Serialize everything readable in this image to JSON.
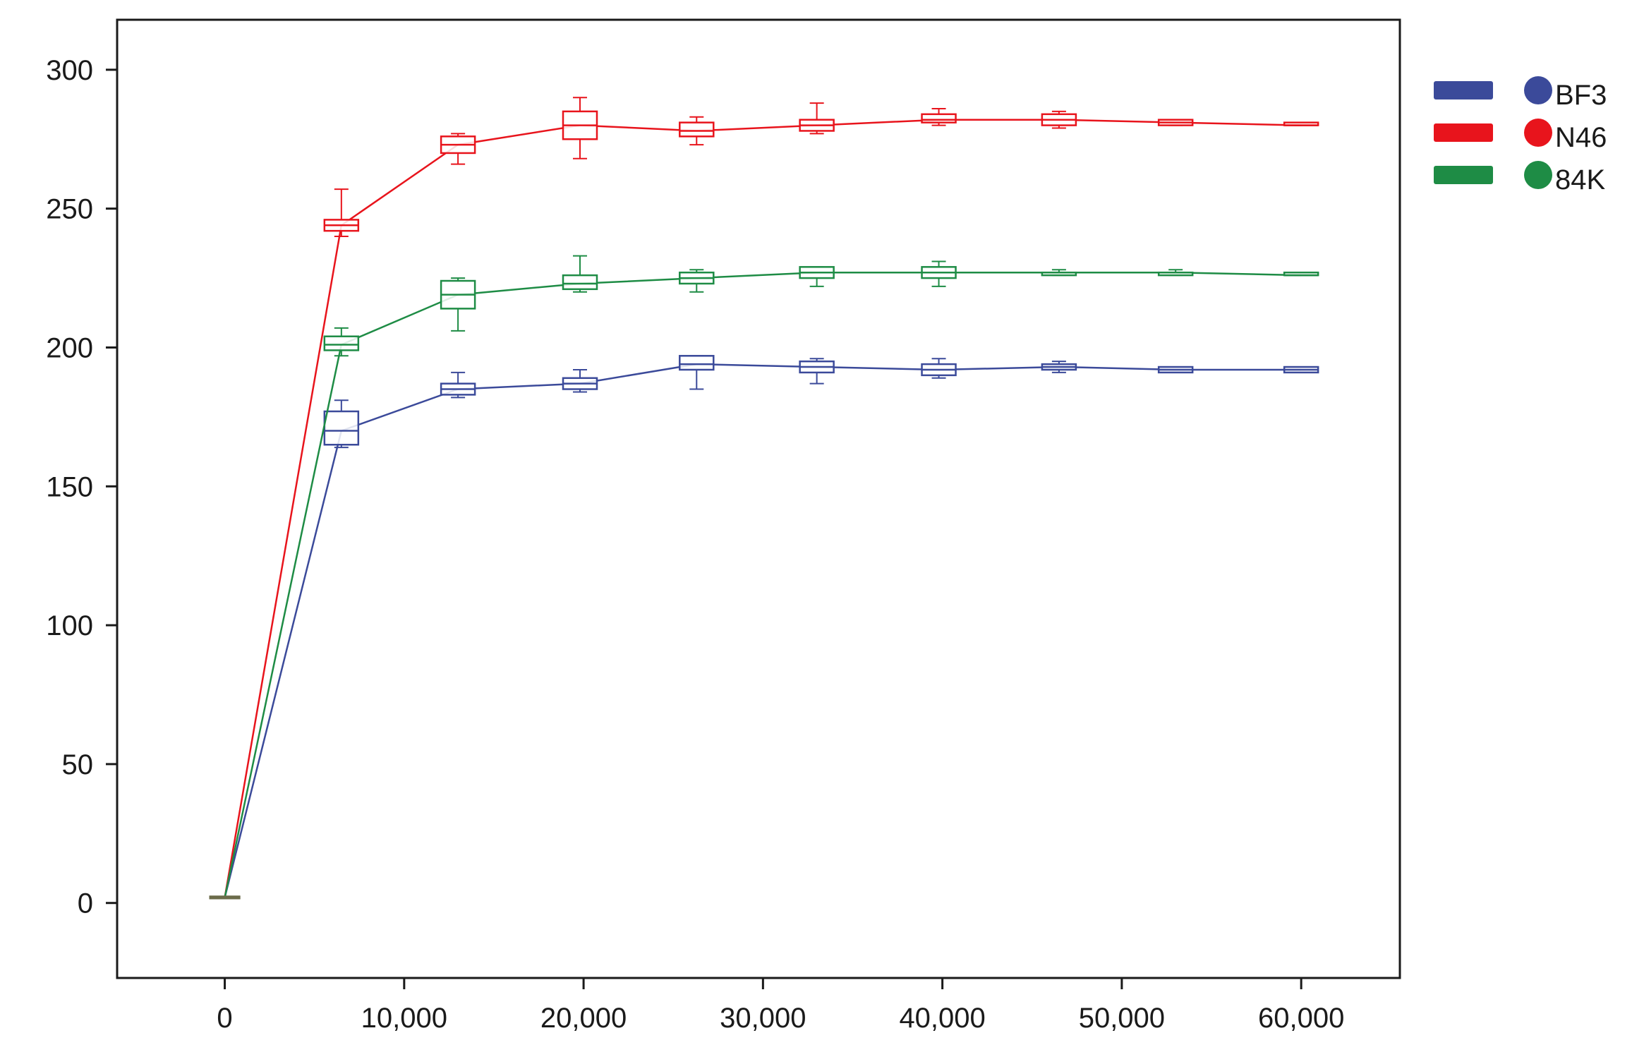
{
  "chart_data": {
    "type": "box-line",
    "x": [
      0,
      6500,
      13000,
      19800,
      26300,
      33000,
      39800,
      46500,
      53000,
      60000
    ],
    "xlim": [
      -6000,
      65500
    ],
    "ylim": [
      -27,
      318
    ],
    "x_ticks": [
      0,
      10000,
      20000,
      30000,
      40000,
      50000,
      60000
    ],
    "x_tick_labels": [
      "0",
      "10,000",
      "20,000",
      "30,000",
      "40,000",
      "50,000",
      "60,000"
    ],
    "y_ticks": [
      0,
      50,
      100,
      150,
      200,
      250,
      300
    ],
    "y_tick_labels": [
      "0",
      "50",
      "100",
      "150",
      "200",
      "250",
      "300"
    ],
    "grid": false,
    "legend_position": "outside-right-top",
    "series": [
      {
        "name": "BF3",
        "color": "#3b4a9a",
        "median": [
          2,
          170,
          185,
          187,
          194,
          193,
          192,
          193,
          192,
          192
        ],
        "q1": [
          2,
          165,
          183,
          185,
          192,
          191,
          190,
          192,
          191,
          191
        ],
        "q3": [
          2,
          177,
          187,
          189,
          197,
          195,
          194,
          194,
          193,
          193
        ],
        "whisker_low": [
          2,
          164,
          182,
          184,
          185,
          187,
          189,
          191,
          191,
          191
        ],
        "whisker_high": [
          2,
          181,
          191,
          192,
          197,
          196,
          196,
          195,
          193,
          193
        ]
      },
      {
        "name": "N46",
        "color": "#e8141c",
        "median": [
          2,
          244,
          273,
          280,
          278,
          280,
          282,
          282,
          281,
          280
        ],
        "q1": [
          2,
          242,
          270,
          275,
          276,
          278,
          281,
          280,
          280,
          280
        ],
        "q3": [
          2,
          246,
          276,
          285,
          281,
          282,
          284,
          284,
          282,
          281
        ],
        "whisker_low": [
          2,
          240,
          266,
          268,
          273,
          277,
          280,
          279,
          280,
          280
        ],
        "whisker_high": [
          2,
          257,
          277,
          290,
          283,
          288,
          286,
          285,
          282,
          281
        ]
      },
      {
        "name": "84K",
        "color": "#1e8c45",
        "median": [
          2,
          201,
          219,
          223,
          225,
          227,
          227,
          227,
          227,
          226
        ],
        "q1": [
          2,
          199,
          214,
          221,
          223,
          225,
          225,
          226,
          226,
          226
        ],
        "q3": [
          2,
          204,
          224,
          226,
          227,
          229,
          229,
          227,
          227,
          227
        ],
        "whisker_low": [
          2,
          197,
          206,
          220,
          220,
          222,
          222,
          226,
          226,
          226
        ],
        "whisker_high": [
          2,
          207,
          225,
          233,
          228,
          229,
          231,
          228,
          228,
          227
        ]
      }
    ]
  }
}
